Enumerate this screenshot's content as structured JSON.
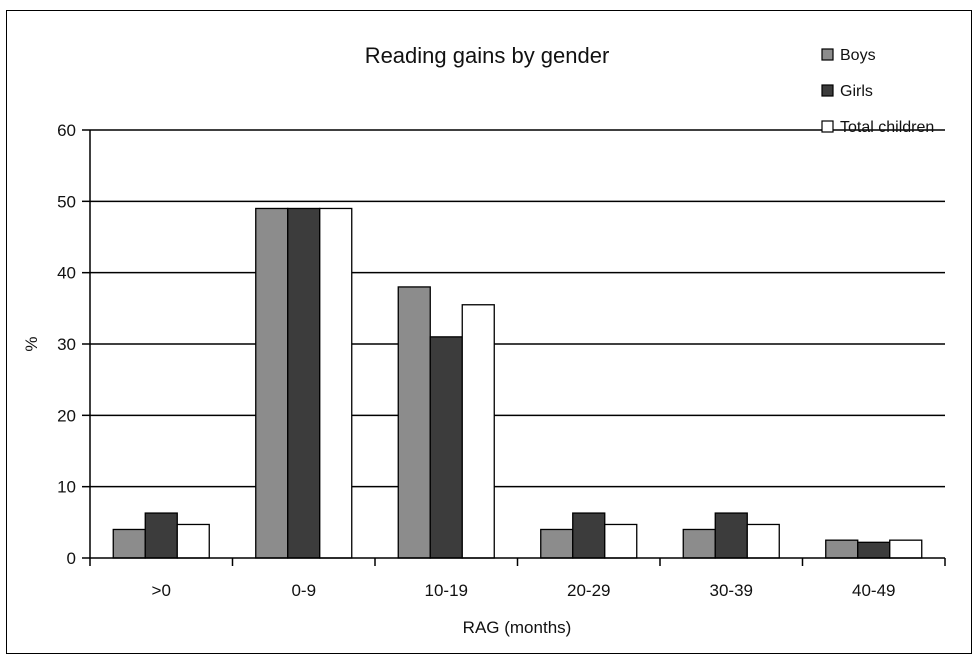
{
  "chart_data": {
    "type": "bar",
    "title": "Reading gains by gender",
    "xlabel": "RAG (months)",
    "ylabel": "%",
    "categories": [
      ">0",
      "0-9",
      "10-19",
      "20-29",
      "30-39",
      "40-49"
    ],
    "series": [
      {
        "name": "Boys",
        "values": [
          4,
          49,
          38,
          4,
          4,
          2.5
        ],
        "color": "#8c8c8c"
      },
      {
        "name": "Girls",
        "values": [
          6.3,
          49,
          31,
          6.3,
          6.3,
          2.2
        ],
        "color": "#3c3c3c"
      },
      {
        "name": "Total children",
        "values": [
          4.7,
          49,
          35.5,
          4.7,
          4.7,
          2.5
        ],
        "color": "#ffffff"
      }
    ],
    "ylim": [
      0,
      60
    ],
    "yticks": [
      0,
      10,
      20,
      30,
      40,
      50,
      60
    ],
    "grid": true,
    "legend_position": "top-right"
  }
}
